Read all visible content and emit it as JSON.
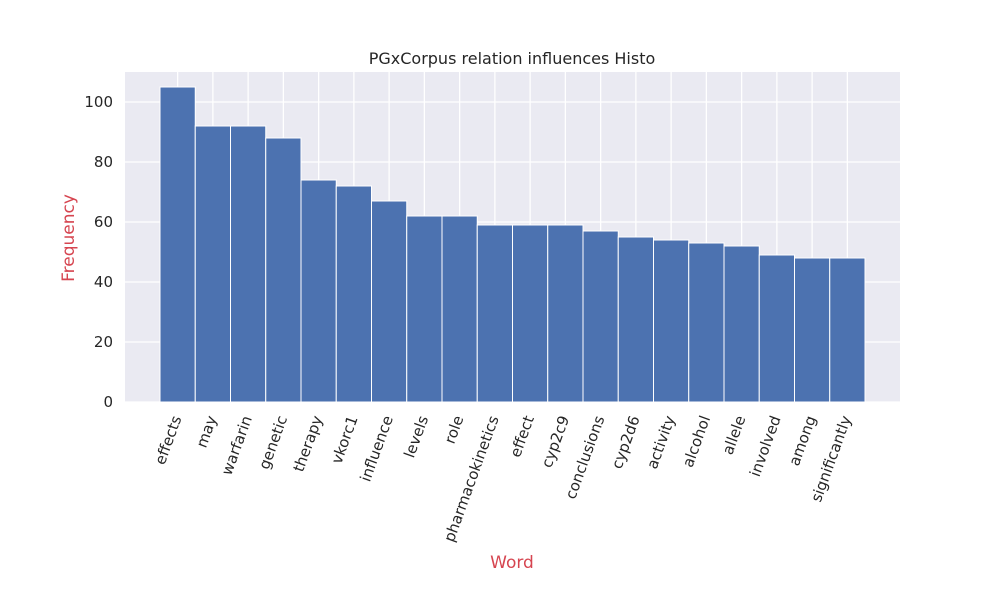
{
  "chart_data": {
    "type": "bar",
    "title": "PGxCorpus relation influences Histo",
    "xlabel": "Word",
    "ylabel": "Frequency",
    "categories": [
      "effects",
      "may",
      "warfarin",
      "genetic",
      "therapy",
      "vkorc1",
      "influence",
      "levels",
      "role",
      "pharmacokinetics",
      "effect",
      "cyp2c9",
      "conclusions",
      "cyp2d6",
      "activity",
      "alcohol",
      "allele",
      "involved",
      "among",
      "significantly"
    ],
    "values": [
      105,
      92,
      92,
      88,
      74,
      72,
      67,
      62,
      62,
      59,
      59,
      59,
      57,
      55,
      54,
      53,
      52,
      49,
      48,
      48
    ],
    "ylim": [
      0,
      110
    ],
    "yticks": [
      0,
      20,
      40,
      60,
      80,
      100
    ],
    "grid": true,
    "legend": "none",
    "colors": {
      "bar": "#4c72b0",
      "plot_background": "#eaeaf2",
      "grid": "#ffffff",
      "axis_label": "#d64550",
      "text": "#262626"
    }
  }
}
